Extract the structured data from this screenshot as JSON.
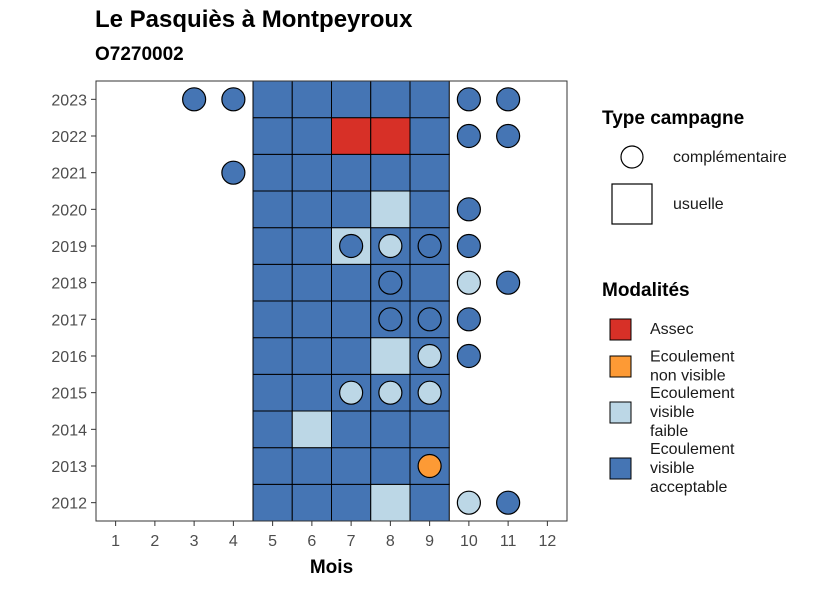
{
  "chart_data": {
    "type": "heatmap",
    "title": "Le Pasquiès à Montpeyroux",
    "subtitle": "O7270002",
    "xlabel": "Mois",
    "ylabel": "",
    "x_ticks": [
      "1",
      "2",
      "3",
      "4",
      "5",
      "6",
      "7",
      "8",
      "9",
      "10",
      "11",
      "12"
    ],
    "y_ticks": [
      "2012",
      "2013",
      "2014",
      "2015",
      "2016",
      "2017",
      "2018",
      "2019",
      "2020",
      "2021",
      "2022",
      "2023"
    ],
    "xlim": [
      0.5,
      12.5
    ],
    "ylim": [
      2011.5,
      2023.5
    ],
    "grid": false,
    "legend_placement": "right",
    "colors": {
      "assec": "#d73027",
      "ecoulement_non_visible": "#fd9a35",
      "ecoulement_visible_faible": "#bcd7e6",
      "ecoulement_visible_acceptable": "#4575b4"
    },
    "legend_type": {
      "title": "Type campagne",
      "items": [
        {
          "shape": "circle",
          "label": "complémentaire"
        },
        {
          "shape": "square",
          "label": "usuelle"
        }
      ]
    },
    "legend_modalites": {
      "title": "Modalités",
      "items": [
        {
          "key": "assec",
          "lines": [
            "Assec"
          ]
        },
        {
          "key": "ecoulement_non_visible",
          "lines": [
            "Ecoulement",
            "non visible"
          ]
        },
        {
          "key": "ecoulement_visible_faible",
          "lines": [
            "Ecoulement",
            "visible",
            "faible"
          ]
        },
        {
          "key": "ecoulement_visible_acceptable",
          "lines": [
            "Ecoulement",
            "visible",
            "acceptable"
          ]
        }
      ]
    },
    "usuelle": [
      {
        "year": 2012,
        "months": [
          5,
          6,
          7,
          8,
          9
        ],
        "values": [
          "ecoulement_visible_acceptable",
          "ecoulement_visible_acceptable",
          "ecoulement_visible_acceptable",
          "ecoulement_visible_faible",
          "ecoulement_visible_acceptable"
        ]
      },
      {
        "year": 2013,
        "months": [
          5,
          6,
          7,
          8,
          9
        ],
        "values": [
          "ecoulement_visible_acceptable",
          "ecoulement_visible_acceptable",
          "ecoulement_visible_acceptable",
          "ecoulement_visible_acceptable",
          "ecoulement_visible_acceptable"
        ]
      },
      {
        "year": 2014,
        "months": [
          5,
          6,
          7,
          8,
          9
        ],
        "values": [
          "ecoulement_visible_acceptable",
          "ecoulement_visible_faible",
          "ecoulement_visible_acceptable",
          "ecoulement_visible_acceptable",
          "ecoulement_visible_acceptable"
        ]
      },
      {
        "year": 2015,
        "months": [
          5,
          6,
          7,
          8,
          9
        ],
        "values": [
          "ecoulement_visible_acceptable",
          "ecoulement_visible_acceptable",
          "ecoulement_visible_acceptable",
          "ecoulement_visible_acceptable",
          "ecoulement_visible_acceptable"
        ]
      },
      {
        "year": 2016,
        "months": [
          5,
          6,
          7,
          8,
          9
        ],
        "values": [
          "ecoulement_visible_acceptable",
          "ecoulement_visible_acceptable",
          "ecoulement_visible_acceptable",
          "ecoulement_visible_faible",
          "ecoulement_visible_acceptable"
        ]
      },
      {
        "year": 2017,
        "months": [
          5,
          6,
          7,
          8,
          9
        ],
        "values": [
          "ecoulement_visible_acceptable",
          "ecoulement_visible_acceptable",
          "ecoulement_visible_acceptable",
          "ecoulement_visible_acceptable",
          "ecoulement_visible_acceptable"
        ]
      },
      {
        "year": 2018,
        "months": [
          5,
          6,
          7,
          8,
          9
        ],
        "values": [
          "ecoulement_visible_acceptable",
          "ecoulement_visible_acceptable",
          "ecoulement_visible_acceptable",
          "ecoulement_visible_acceptable",
          "ecoulement_visible_acceptable"
        ]
      },
      {
        "year": 2019,
        "months": [
          5,
          6,
          7,
          8,
          9
        ],
        "values": [
          "ecoulement_visible_acceptable",
          "ecoulement_visible_acceptable",
          "ecoulement_visible_faible",
          "ecoulement_visible_acceptable",
          "ecoulement_visible_acceptable"
        ]
      },
      {
        "year": 2020,
        "months": [
          5,
          6,
          7,
          8,
          9
        ],
        "values": [
          "ecoulement_visible_acceptable",
          "ecoulement_visible_acceptable",
          "ecoulement_visible_acceptable",
          "ecoulement_visible_faible",
          "ecoulement_visible_acceptable"
        ]
      },
      {
        "year": 2021,
        "months": [
          5,
          6,
          7,
          8,
          9
        ],
        "values": [
          "ecoulement_visible_acceptable",
          "ecoulement_visible_acceptable",
          "ecoulement_visible_acceptable",
          "ecoulement_visible_acceptable",
          "ecoulement_visible_acceptable"
        ]
      },
      {
        "year": 2022,
        "months": [
          5,
          6,
          7,
          8,
          9
        ],
        "values": [
          "ecoulement_visible_acceptable",
          "ecoulement_visible_acceptable",
          "assec",
          "assec",
          "ecoulement_visible_acceptable"
        ]
      },
      {
        "year": 2023,
        "months": [
          5,
          6,
          7,
          8,
          9
        ],
        "values": [
          "ecoulement_visible_acceptable",
          "ecoulement_visible_acceptable",
          "ecoulement_visible_acceptable",
          "ecoulement_visible_acceptable",
          "ecoulement_visible_acceptable"
        ]
      }
    ],
    "complementaire": [
      {
        "year": 2023,
        "month": 3,
        "value": "ecoulement_visible_acceptable"
      },
      {
        "year": 2023,
        "month": 4,
        "value": "ecoulement_visible_acceptable"
      },
      {
        "year": 2023,
        "month": 10,
        "value": "ecoulement_visible_acceptable"
      },
      {
        "year": 2023,
        "month": 11,
        "value": "ecoulement_visible_acceptable"
      },
      {
        "year": 2022,
        "month": 10,
        "value": "ecoulement_visible_acceptable"
      },
      {
        "year": 2022,
        "month": 11,
        "value": "ecoulement_visible_acceptable"
      },
      {
        "year": 2021,
        "month": 4,
        "value": "ecoulement_visible_acceptable"
      },
      {
        "year": 2020,
        "month": 10,
        "value": "ecoulement_visible_acceptable"
      },
      {
        "year": 2019,
        "month": 7,
        "value": "ecoulement_visible_acceptable"
      },
      {
        "year": 2019,
        "month": 8,
        "value": "ecoulement_visible_faible"
      },
      {
        "year": 2019,
        "month": 9,
        "value": "ecoulement_visible_acceptable"
      },
      {
        "year": 2019,
        "month": 10,
        "value": "ecoulement_visible_acceptable"
      },
      {
        "year": 2018,
        "month": 8,
        "value": "ecoulement_visible_acceptable"
      },
      {
        "year": 2018,
        "month": 10,
        "value": "ecoulement_visible_faible"
      },
      {
        "year": 2018,
        "month": 11,
        "value": "ecoulement_visible_acceptable"
      },
      {
        "year": 2017,
        "month": 8,
        "value": "ecoulement_visible_acceptable"
      },
      {
        "year": 2017,
        "month": 9,
        "value": "ecoulement_visible_acceptable"
      },
      {
        "year": 2017,
        "month": 10,
        "value": "ecoulement_visible_acceptable"
      },
      {
        "year": 2016,
        "month": 9,
        "value": "ecoulement_visible_faible"
      },
      {
        "year": 2016,
        "month": 10,
        "value": "ecoulement_visible_acceptable"
      },
      {
        "year": 2015,
        "month": 7,
        "value": "ecoulement_visible_faible"
      },
      {
        "year": 2015,
        "month": 8,
        "value": "ecoulement_visible_faible"
      },
      {
        "year": 2015,
        "month": 9,
        "value": "ecoulement_visible_faible"
      },
      {
        "year": 2013,
        "month": 9,
        "value": "ecoulement_non_visible"
      },
      {
        "year": 2012,
        "month": 10,
        "value": "ecoulement_visible_faible"
      },
      {
        "year": 2012,
        "month": 11,
        "value": "ecoulement_visible_acceptable"
      }
    ]
  }
}
